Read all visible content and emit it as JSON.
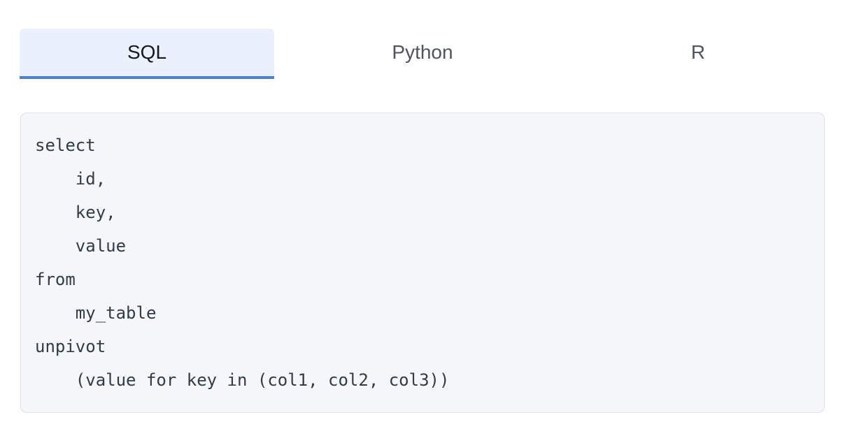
{
  "tabs": [
    {
      "label": "SQL",
      "active": true
    },
    {
      "label": "Python",
      "active": false
    },
    {
      "label": "R",
      "active": false
    }
  ],
  "code": {
    "language": "sql",
    "content": "select\n    id,\n    key,\n    value\nfrom\n    my_table\nunpivot\n    (value for key in (col1, col2, col3))"
  },
  "colors": {
    "active_tab_background": "#eaf1fc",
    "active_tab_underline": "#4a80dc",
    "active_tab_text": "#15181d",
    "inactive_tab_text": "#4c5565",
    "code_background": "#f4f6f9",
    "code_border": "#dfe2e7",
    "code_text": "#303c49"
  }
}
